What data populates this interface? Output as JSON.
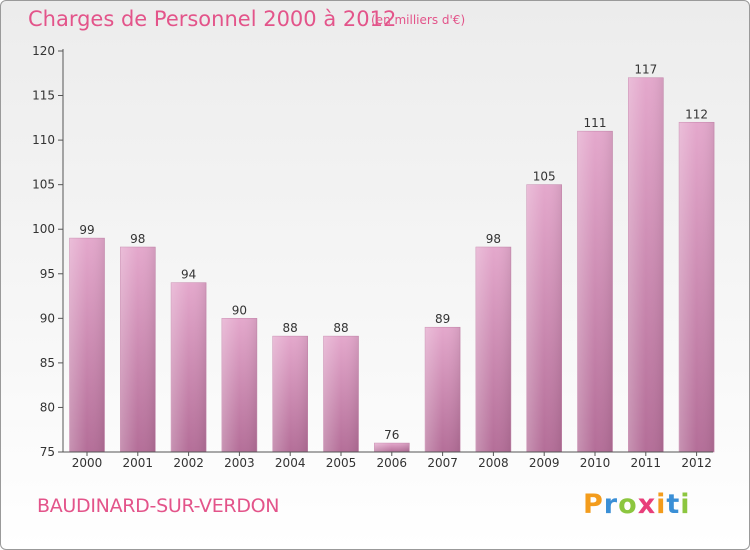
{
  "header": {
    "title": "Charges de Personnel 2000 à 2012",
    "subtitle": "(en milliers d'€)"
  },
  "footer": {
    "commune": "BAUDINARD-SUR-VERDON",
    "brand_letters": [
      "P",
      "r",
      "o",
      "x",
      "i",
      "t",
      "i"
    ],
    "brand_colors": [
      "#f39c1c",
      "#3a8fd6",
      "#8cc63f",
      "#e83e7a",
      "#f39c1c",
      "#3a8fd6",
      "#8cc63f"
    ]
  },
  "colors": {
    "bar_top": "#e4a8cc",
    "bar_bottom": "#b46e98",
    "text": "#333333",
    "accent": "#e3548a"
  },
  "chart_data": {
    "type": "bar",
    "title": "Charges de Personnel 2000 à 2012",
    "subtitle": "(en milliers d'€)",
    "categories": [
      "2000",
      "2001",
      "2002",
      "2003",
      "2004",
      "2005",
      "2006",
      "2007",
      "2008",
      "2009",
      "2010",
      "2011",
      "2012"
    ],
    "values": [
      99,
      98,
      94,
      90,
      88,
      88,
      76,
      89,
      98,
      105,
      111,
      117,
      112
    ],
    "ylim": [
      75,
      120
    ],
    "yticks": [
      75,
      80,
      85,
      90,
      95,
      100,
      105,
      110,
      115,
      120
    ],
    "grid": false,
    "legend": "none",
    "xlabel": "",
    "ylabel": ""
  }
}
